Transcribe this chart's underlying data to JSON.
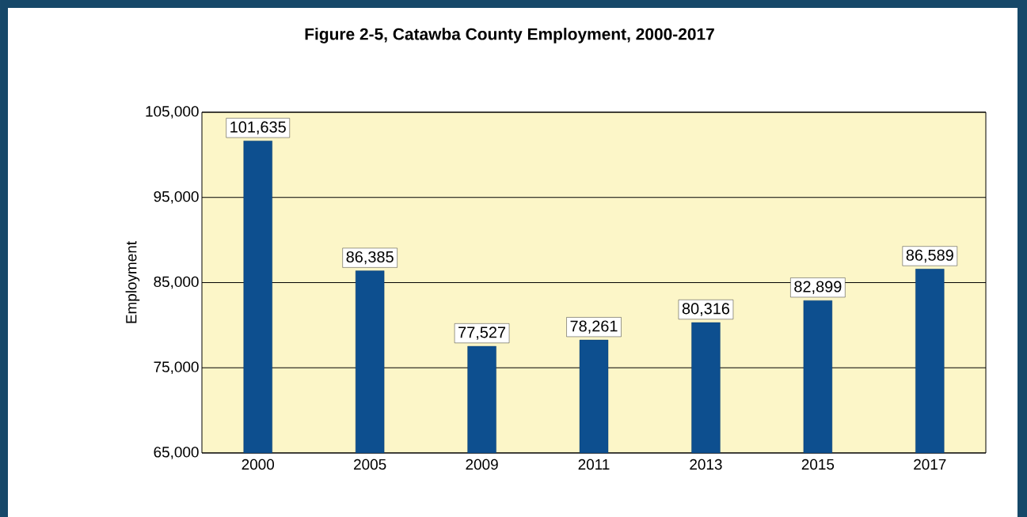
{
  "chart_data": {
    "type": "bar",
    "title": "Figure 2-5, Catawba County Employment, 2000-2017",
    "ylabel": "Employment",
    "categories": [
      "2000",
      "2005",
      "2009",
      "2011",
      "2013",
      "2015",
      "2017"
    ],
    "values": [
      101635,
      86385,
      77527,
      78261,
      80316,
      82899,
      86589
    ],
    "value_labels": [
      "101,635",
      "86,385",
      "77,527",
      "78,261",
      "80,316",
      "82,899",
      "86,589"
    ],
    "color": "#0d4f8f",
    "ylim": [
      65000,
      105000
    ],
    "yticks": [
      {
        "value": 65000,
        "label": "65,000"
      },
      {
        "value": 75000,
        "label": "75,000"
      },
      {
        "value": 85000,
        "label": "85,000"
      },
      {
        "value": 95000,
        "label": "95,000"
      },
      {
        "value": 105000,
        "label": "105,000"
      }
    ],
    "grid": "y"
  }
}
